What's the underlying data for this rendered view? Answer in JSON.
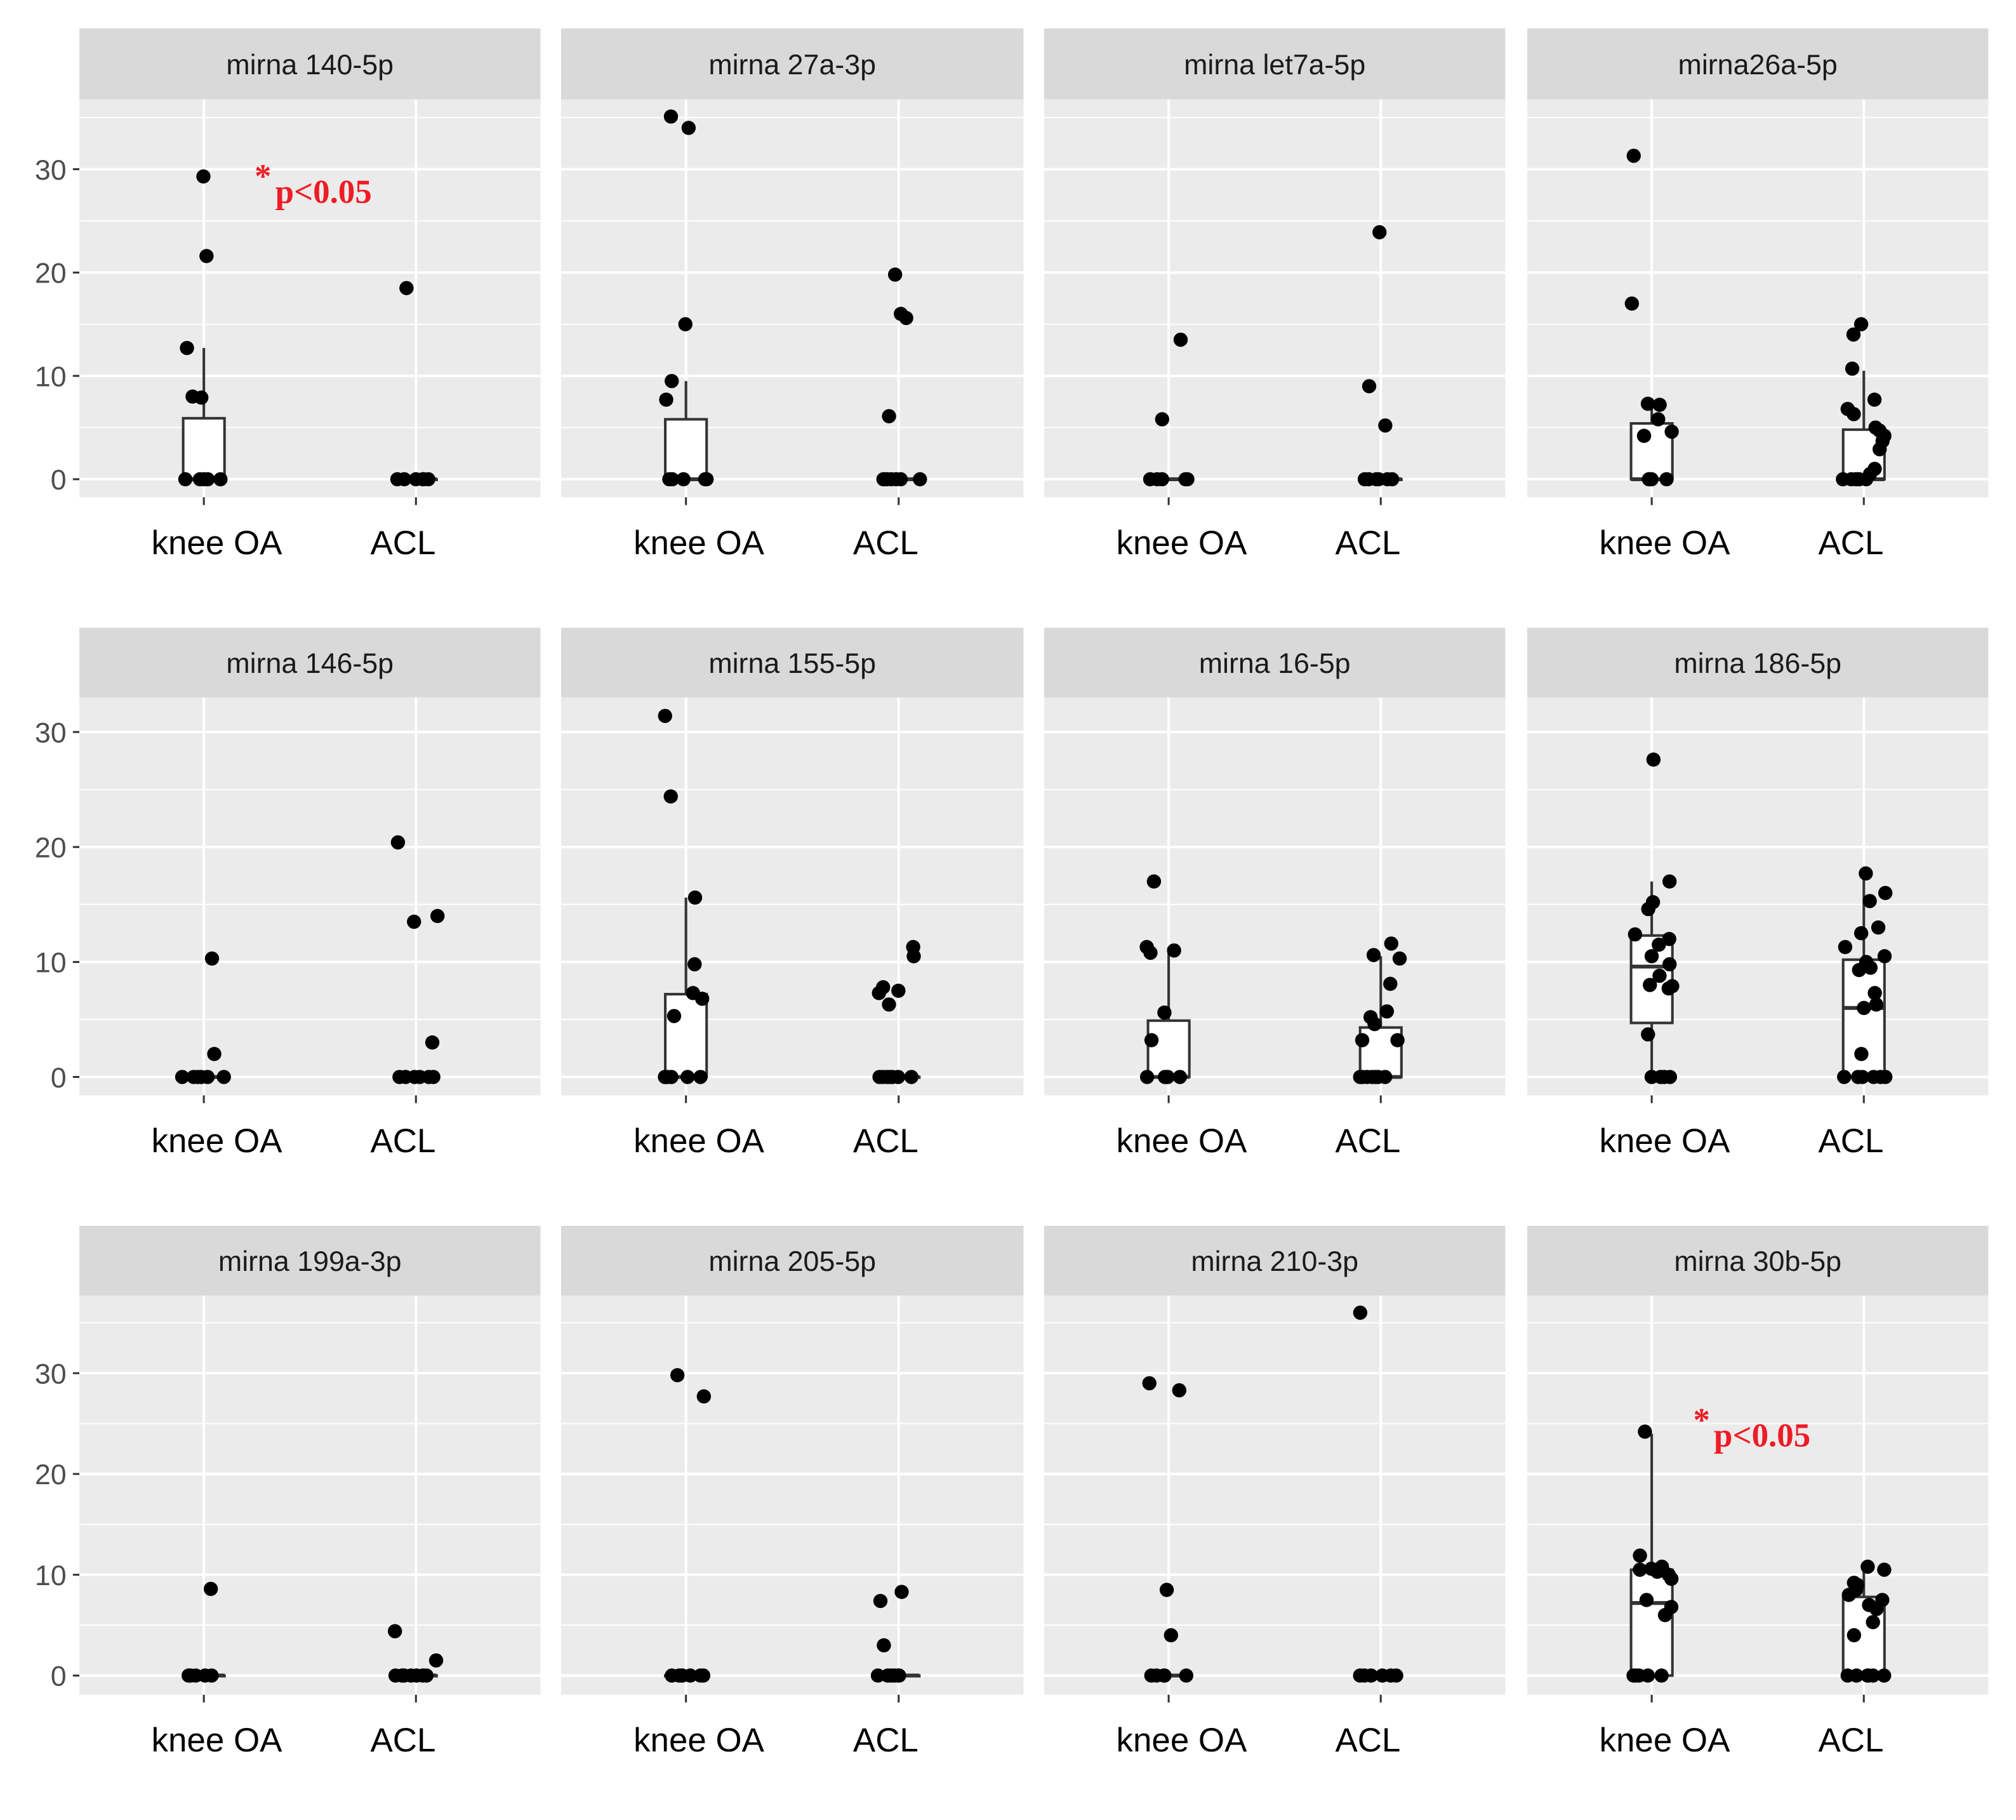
{
  "chart_data": {
    "type": "scatter",
    "subtype": "boxplot-with-jittered-points",
    "categories": [
      "knee OA",
      "ACL"
    ],
    "y_ticks": [
      0,
      10,
      20,
      30
    ],
    "row_ylim": [
      [
        -1.75,
        36.75
      ],
      [
        -1.6,
        33.0
      ],
      [
        -1.9,
        37.7
      ]
    ],
    "grid": true,
    "colors": {
      "panel": "#ebebeb",
      "strip": "#d9d9d9",
      "grid": "#ffffff",
      "point": "#000000",
      "box": "#ffffff",
      "annotation": "#ee1c25"
    },
    "panels": [
      {
        "title": "mirna 140-5p",
        "annotation": {
          "star": "*",
          "text": "p<0.05",
          "y": 28
        },
        "groups": [
          {
            "name": "knee OA",
            "values": [
              29.3,
              21.6,
              12.7,
              8,
              7.9,
              0,
              0,
              0,
              0,
              0
            ],
            "box": [
              0,
              0,
              0,
              5.9,
              12.7
            ]
          },
          {
            "name": "ACL",
            "values": [
              18.5,
              0,
              0,
              0,
              0,
              0,
              0
            ],
            "box": [
              0,
              0,
              0,
              0,
              0
            ]
          }
        ]
      },
      {
        "title": "mirna 27a-3p",
        "groups": [
          {
            "name": "knee OA",
            "values": [
              35.1,
              34,
              15,
              9.5,
              7.7,
              0,
              0,
              0,
              0,
              0,
              0
            ],
            "box": [
              0,
              0,
              0,
              5.8,
              9.5
            ]
          },
          {
            "name": "ACL",
            "values": [
              19.8,
              16,
              15.6,
              6.1,
              0,
              0,
              0,
              0,
              0,
              0,
              0
            ],
            "box": [
              0,
              0,
              0,
              0,
              0
            ]
          }
        ]
      },
      {
        "title": "mirna let7a-5p",
        "groups": [
          {
            "name": "knee OA",
            "values": [
              13.5,
              5.8,
              0,
              0,
              0,
              0,
              0
            ],
            "box": [
              0,
              0,
              0,
              0,
              0
            ]
          },
          {
            "name": "ACL",
            "values": [
              23.9,
              9,
              5.2,
              0,
              0,
              0,
              0,
              0,
              0
            ],
            "box": [
              0,
              0,
              0,
              0,
              0
            ]
          }
        ]
      },
      {
        "title": "mirna26a-5p",
        "groups": [
          {
            "name": "knee OA",
            "values": [
              31.3,
              17,
              7.3,
              7.2,
              5.8,
              4.6,
              4.2,
              0,
              0,
              0,
              0,
              0
            ],
            "box": [
              0,
              0,
              0,
              5.4,
              7.3
            ]
          },
          {
            "name": "ACL",
            "values": [
              15,
              14,
              10.7,
              7.7,
              6.8,
              6.3,
              5,
              4.7,
              4.2,
              3.7,
              2.9,
              1,
              0.5,
              0,
              0,
              0,
              0,
              0,
              0
            ],
            "box": [
              0,
              0,
              0,
              4.8,
              10.5
            ]
          }
        ]
      },
      {
        "title": "mirna 146-5p",
        "groups": [
          {
            "name": "knee OA",
            "values": [
              10.3,
              2,
              0,
              0,
              0,
              0,
              0,
              0
            ],
            "box": [
              0,
              0,
              0,
              0,
              0
            ]
          },
          {
            "name": "ACL",
            "values": [
              20.4,
              14,
              13.5,
              3,
              0,
              0,
              0,
              0,
              0,
              0
            ],
            "box": [
              0,
              0,
              0,
              0,
              0
            ]
          }
        ]
      },
      {
        "title": "mirna 155-5p",
        "groups": [
          {
            "name": "knee OA",
            "values": [
              31.4,
              24.4,
              15.6,
              9.8,
              7.3,
              6.8,
              5.3,
              0,
              0,
              0,
              0,
              0,
              0
            ],
            "box": [
              0,
              0,
              0,
              7.2,
              15.6
            ]
          },
          {
            "name": "ACL",
            "values": [
              11.3,
              10.5,
              7.8,
              7.5,
              7.3,
              6.3,
              0,
              0,
              0,
              0,
              0,
              0,
              0
            ],
            "box": [
              0,
              0,
              0,
              0,
              0
            ]
          }
        ]
      },
      {
        "title": "mirna 16-5p",
        "groups": [
          {
            "name": "knee OA",
            "values": [
              17,
              11.3,
              11,
              10.8,
              5.6,
              3.2,
              0,
              0,
              0,
              0,
              0
            ],
            "box": [
              0,
              0,
              0,
              4.9,
              11.3
            ]
          },
          {
            "name": "ACL",
            "values": [
              11.6,
              10.6,
              10.3,
              8.1,
              5.7,
              5.2,
              4.6,
              3.2,
              3.2,
              0,
              0,
              0,
              0,
              0,
              0,
              0,
              0
            ],
            "box": [
              0,
              0,
              0,
              4.3,
              10.5
            ]
          }
        ]
      },
      {
        "title": "mirna 186-5p",
        "groups": [
          {
            "name": "knee OA",
            "values": [
              27.6,
              17,
              15.2,
              14.6,
              12.4,
              12,
              11.5,
              10.5,
              9.8,
              8.8,
              8,
              7.9,
              7.7,
              3.7,
              0,
              0,
              0,
              0
            ],
            "box": [
              0,
              4.7,
              9.6,
              12.3,
              17
            ]
          },
          {
            "name": "ACL",
            "values": [
              17.7,
              16,
              15.3,
              13,
              12.5,
              11.3,
              10.5,
              10,
              9.5,
              9.3,
              7.3,
              6.3,
              6,
              2,
              0,
              0,
              0,
              0,
              0,
              0
            ],
            "box": [
              0,
              0,
              6,
              10.2,
              17.5
            ]
          }
        ]
      },
      {
        "title": "mirna 199a-3p",
        "groups": [
          {
            "name": "knee OA",
            "values": [
              8.6,
              0,
              0,
              0,
              0,
              0,
              0
            ],
            "box": [
              0,
              0,
              0,
              0,
              0
            ]
          },
          {
            "name": "ACL",
            "values": [
              4.4,
              1.5,
              0,
              0,
              0,
              0,
              0,
              0,
              0
            ],
            "box": [
              0,
              0,
              0,
              0,
              0
            ]
          }
        ]
      },
      {
        "title": "mirna 205-5p",
        "groups": [
          {
            "name": "knee OA",
            "values": [
              29.8,
              27.7,
              0,
              0,
              0,
              0,
              0,
              0,
              0
            ],
            "box": [
              0,
              0,
              0,
              0,
              0
            ]
          },
          {
            "name": "ACL",
            "values": [
              8.3,
              7.4,
              3,
              0,
              0,
              0,
              0,
              0,
              0
            ],
            "box": [
              0,
              0,
              0,
              0,
              0
            ]
          }
        ]
      },
      {
        "title": "mirna 210-3p",
        "groups": [
          {
            "name": "knee OA",
            "values": [
              29,
              28.3,
              8.5,
              4,
              0,
              0,
              0,
              0,
              0
            ],
            "box": [
              0,
              0,
              0,
              0,
              0
            ]
          },
          {
            "name": "ACL",
            "values": [
              36,
              0,
              0,
              0,
              0,
              0,
              0
            ],
            "box": [
              0,
              0,
              0,
              0,
              0
            ]
          }
        ]
      },
      {
        "title": "mirna 30b-5p",
        "annotation": {
          "star": "*",
          "text": "p<0.05",
          "y": 24
        },
        "groups": [
          {
            "name": "knee OA",
            "values": [
              24.2,
              11.9,
              10.8,
              10.6,
              10.5,
              10.3,
              10,
              9.6,
              7.5,
              6.8,
              6,
              0,
              0,
              0,
              0,
              0
            ],
            "box": [
              0,
              0,
              7.2,
              10.5,
              24
            ]
          },
          {
            "name": "ACL",
            "values": [
              10.8,
              10.5,
              9.2,
              9,
              8.5,
              8,
              7.5,
              7,
              6.6,
              5.3,
              4,
              0,
              0,
              0,
              0,
              0,
              0
            ],
            "box": [
              0,
              0,
              0,
              7.8,
              10.8
            ]
          }
        ]
      }
    ]
  }
}
